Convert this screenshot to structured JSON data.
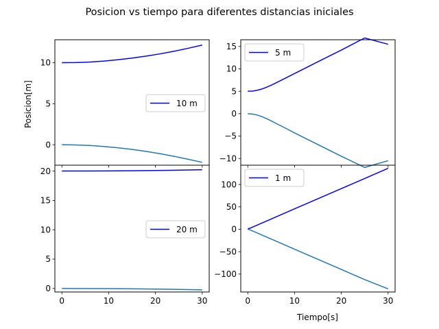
{
  "figure": {
    "title": "Posicion vs tiempo para diferentes distancias iniciales",
    "xlabel": "Tiempo[s]",
    "ylabel": "Posicion[m]"
  },
  "colors": {
    "series_a": "#0000ff",
    "series_b": "#1f77b4"
  },
  "chart_data": [
    {
      "type": "line",
      "panel": "top-left",
      "legend": "10 m",
      "legend_position": "right",
      "xlim": [
        -1.5,
        31.5
      ],
      "ylim": [
        -2.5,
        12.8
      ],
      "xticks": [
        0,
        10,
        20,
        30
      ],
      "yticks": [
        0,
        5,
        10
      ],
      "series": [
        {
          "name": "10 m",
          "color": "#0000ff",
          "x": [
            0,
            3,
            6,
            9,
            12,
            15,
            18,
            21,
            24,
            27,
            30
          ],
          "y": [
            10.0,
            10.02,
            10.08,
            10.2,
            10.36,
            10.56,
            10.8,
            11.08,
            11.4,
            11.76,
            12.15
          ]
        },
        {
          "color": "#1f77b4",
          "x": [
            0,
            3,
            6,
            9,
            12,
            15,
            18,
            21,
            24,
            27,
            30
          ],
          "y": [
            0.0,
            -0.03,
            -0.1,
            -0.22,
            -0.38,
            -0.58,
            -0.82,
            -1.1,
            -1.42,
            -1.78,
            -2.15
          ]
        }
      ]
    },
    {
      "type": "line",
      "panel": "top-right",
      "legend": "5 m",
      "legend_position": "top-left",
      "xlim": [
        -1.5,
        31.5
      ],
      "ylim": [
        -11.5,
        16.5
      ],
      "xticks": [
        0,
        10,
        20,
        30
      ],
      "yticks": [
        -10,
        -5,
        0,
        5,
        10,
        15
      ],
      "series": [
        {
          "name": "5 m",
          "color": "#0000ff",
          "x": [
            0,
            1,
            2,
            3,
            4,
            5,
            6,
            8,
            10,
            15,
            20,
            25,
            30
          ],
          "y": [
            5.0,
            5.05,
            5.22,
            5.5,
            5.9,
            6.35,
            6.85,
            7.9,
            8.95,
            11.6,
            14.2,
            16.9,
            15.5
          ]
        },
        {
          "color": "#1f77b4",
          "x": [
            0,
            1,
            2,
            3,
            4,
            5,
            6,
            8,
            10,
            15,
            20,
            25,
            30
          ],
          "y": [
            0.0,
            -0.08,
            -0.3,
            -0.65,
            -1.1,
            -1.6,
            -2.15,
            -3.2,
            -4.3,
            -6.9,
            -9.5,
            -12.0,
            -10.5
          ]
        }
      ]
    },
    {
      "type": "line",
      "panel": "bottom-left",
      "legend": "20 m",
      "legend_position": "right",
      "xlim": [
        -1.5,
        31.5
      ],
      "ylim": [
        -0.6,
        21.0
      ],
      "xticks": [
        0,
        10,
        20,
        30
      ],
      "yticks": [
        0,
        5,
        10,
        15,
        20
      ],
      "series": [
        {
          "name": "20 m",
          "color": "#0000ff",
          "x": [
            0,
            5,
            10,
            15,
            20,
            25,
            30
          ],
          "y": [
            20.0,
            20.0,
            20.02,
            20.05,
            20.09,
            20.15,
            20.22
          ]
        },
        {
          "color": "#1f77b4",
          "x": [
            0,
            5,
            10,
            15,
            20,
            25,
            30
          ],
          "y": [
            0.0,
            -0.01,
            -0.03,
            -0.06,
            -0.1,
            -0.16,
            -0.24
          ]
        }
      ]
    },
    {
      "type": "line",
      "panel": "bottom-right",
      "legend": "1 m",
      "legend_position": "top-left",
      "xlim": [
        -1.5,
        31.5
      ],
      "ylim": [
        -140,
        143
      ],
      "xticks": [
        0,
        10,
        20,
        30
      ],
      "yticks": [
        -100,
        -50,
        0,
        50,
        100
      ],
      "series": [
        {
          "name": "1 m",
          "color": "#0000ff",
          "x": [
            0,
            0.5,
            1,
            2,
            5,
            10,
            15,
            20,
            25,
            30
          ],
          "y": [
            1.0,
            2.4,
            4.7,
            9.2,
            22.8,
            45.5,
            68.1,
            90.7,
            113.3,
            136.0
          ]
        },
        {
          "color": "#1f77b4",
          "x": [
            0,
            0.5,
            1,
            2,
            5,
            10,
            15,
            20,
            25,
            30
          ],
          "y": [
            0.0,
            -1.4,
            -3.7,
            -8.2,
            -21.8,
            -44.5,
            -67.1,
            -89.7,
            -112.3,
            -133.0
          ]
        }
      ]
    }
  ]
}
